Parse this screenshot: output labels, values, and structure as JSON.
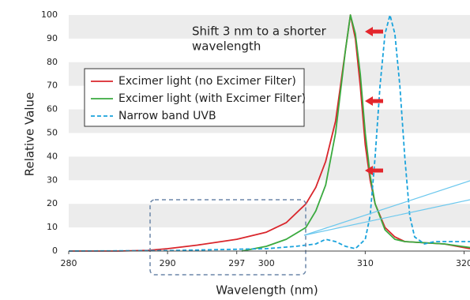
{
  "chart_data": {
    "type": "line",
    "ylabel": "Relative Value",
    "xlabel": "Wavelength (nm)",
    "annotation": [
      "Shift 3 nm to a shorter",
      "wavelength"
    ],
    "xlim": [
      280,
      320.6
    ],
    "xticks": [
      280,
      290,
      297,
      300,
      310,
      320
    ],
    "ylim": [
      0,
      100
    ],
    "yticks": [
      0,
      10,
      20,
      30,
      40,
      50,
      60,
      70,
      80,
      90,
      100
    ],
    "grid": "bands",
    "legend": "upper-left",
    "series": [
      {
        "name": "Excimer light (no Excimer Filter)",
        "color": "#d9262c",
        "dash": false,
        "x": [
          280,
          285,
          288,
          290,
          293,
          297,
          300,
          302,
          304,
          305,
          306,
          307,
          308,
          308.5,
          309,
          309.5,
          310,
          310.5,
          311,
          312,
          313,
          314,
          316,
          318,
          320.6
        ],
        "values": [
          0,
          0,
          0.3,
          1,
          2.5,
          5,
          8,
          12,
          20,
          27,
          38,
          55,
          85,
          100,
          90,
          70,
          45,
          30,
          20,
          10,
          6,
          4,
          3.5,
          3,
          1
        ]
      },
      {
        "name": "Excimer light (with Excimer Filter)",
        "color": "#3aaa3f",
        "dash": false,
        "x": [
          297.5,
          300,
          302,
          304,
          305,
          306,
          307,
          308,
          308.5,
          309,
          309.5,
          310,
          310.5,
          311,
          312,
          313,
          314,
          316,
          318,
          320.6
        ],
        "values": [
          0,
          2,
          5,
          10,
          17,
          28,
          50,
          85,
          100,
          92,
          75,
          50,
          32,
          20,
          9,
          5,
          4,
          3.5,
          3,
          1.5
        ]
      },
      {
        "name": "Narrow band UVB",
        "color": "#1aa3dc",
        "dash": true,
        "x": [
          280,
          290,
          300,
          303,
          305,
          306,
          307,
          308,
          309,
          310,
          310.5,
          311,
          311.5,
          312,
          312.5,
          313,
          313.5,
          314,
          314.5,
          315,
          316,
          317,
          318,
          320.6
        ],
        "values": [
          0,
          0.2,
          1,
          2,
          3,
          5,
          4,
          2,
          1,
          5,
          15,
          40,
          70,
          92,
          100,
          92,
          70,
          40,
          15,
          6,
          3,
          4,
          4,
          4
        ]
      }
    ]
  }
}
